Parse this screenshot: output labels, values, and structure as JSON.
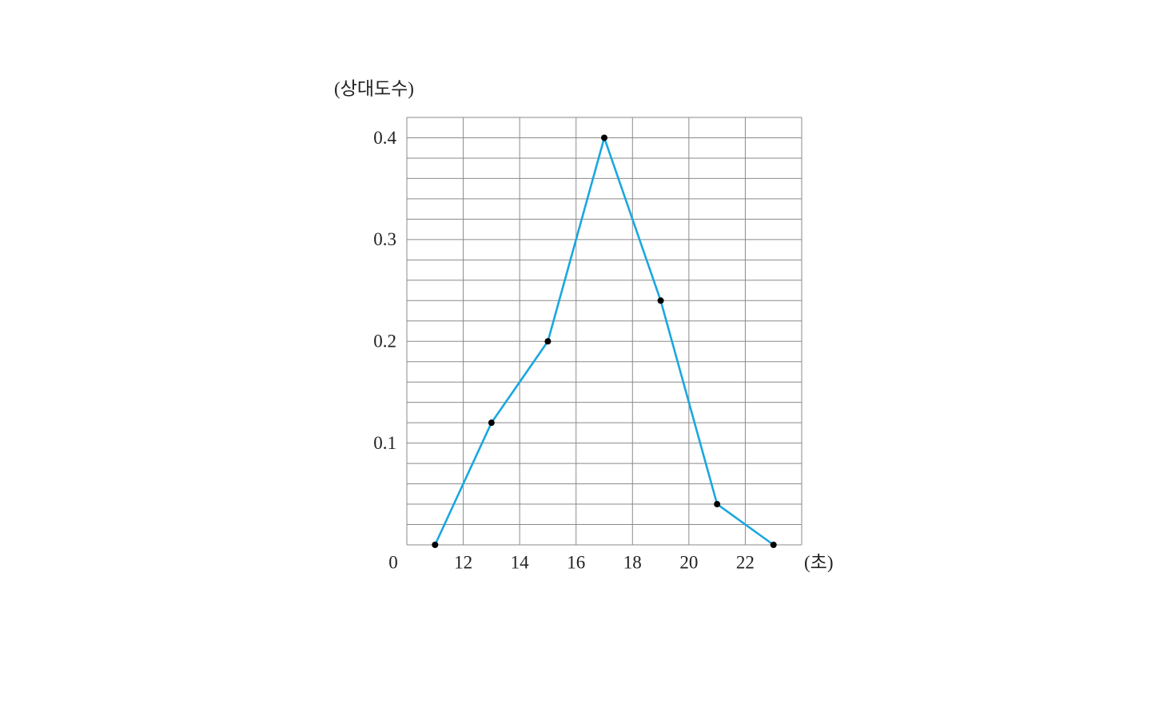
{
  "chart_data": {
    "type": "line",
    "y_label": "(상대도수)",
    "x_label": "(초)",
    "origin_label": "0",
    "x": [
      11,
      13,
      15,
      17,
      19,
      21,
      23
    ],
    "series": [
      {
        "color": "#1aa7e0",
        "values": [
          0,
          0.12,
          0.2,
          0.4,
          0.24,
          0.04,
          0
        ]
      }
    ],
    "xlim": [
      10,
      24
    ],
    "ylim": [
      0,
      0.42
    ],
    "xticks": [
      12,
      14,
      16,
      18,
      20,
      22
    ],
    "yticks": [
      {
        "value": 0.1,
        "label": "0.1"
      },
      {
        "value": 0.2,
        "label": "0.2"
      },
      {
        "value": 0.3,
        "label": "0.3"
      },
      {
        "value": 0.4,
        "label": "0.4"
      }
    ],
    "y_minor_ticks": [
      0.02,
      0.04,
      0.06,
      0.08,
      0.12,
      0.14,
      0.16,
      0.18,
      0.22,
      0.24,
      0.26,
      0.28,
      0.32,
      0.34,
      0.36,
      0.38,
      0.42
    ],
    "grid": true
  }
}
